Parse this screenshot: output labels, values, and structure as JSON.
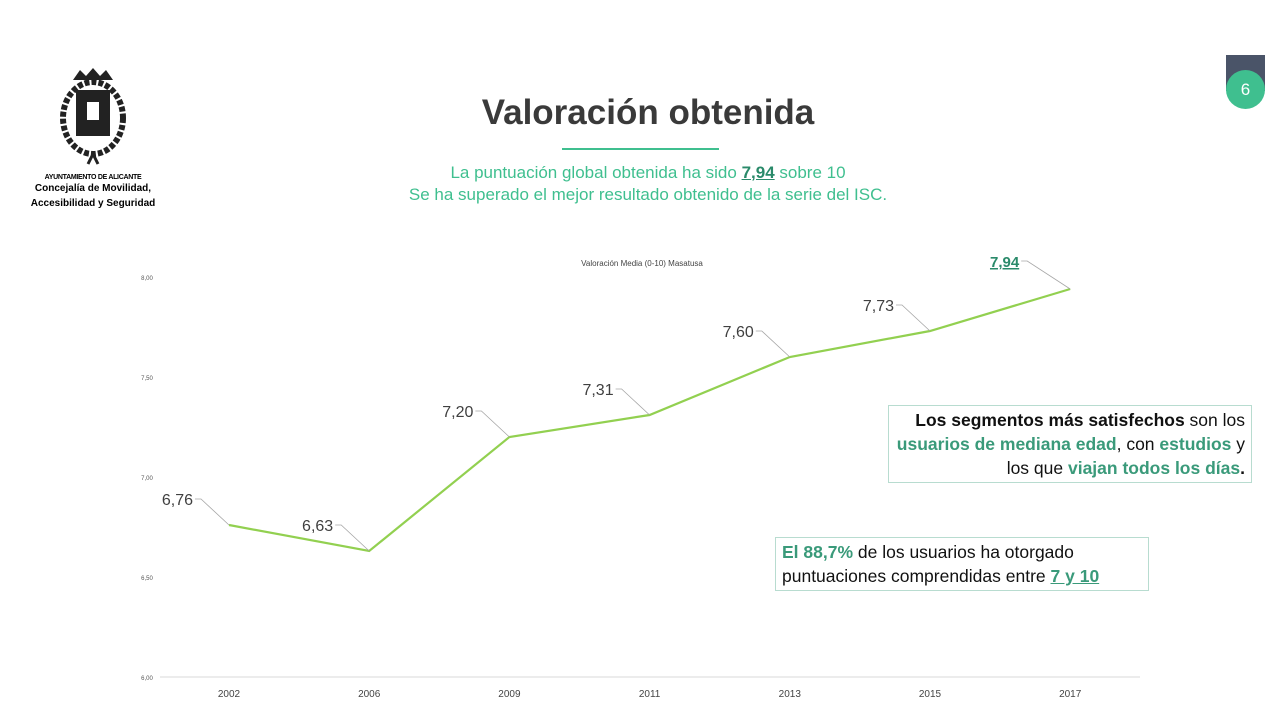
{
  "logo": {
    "line1": "AYUNTAMIENTO DE ALICANTE",
    "line2": "Concejalía de Movilidad,",
    "line3": "Accesibilidad y Seguridad"
  },
  "page_number": "6",
  "title": "Valoración obtenida",
  "subtitle": {
    "pre": "La puntuación global obtenida ha sido ",
    "score": "7,94",
    "post": " sobre 10",
    "line2": "Se ha superado el mejor resultado obtenido de la serie del ISC."
  },
  "chart_data": {
    "type": "line",
    "title": "Valoración Media (0-10) Masatusa",
    "categories": [
      "2002",
      "2006",
      "2009",
      "2011",
      "2013",
      "2015",
      "2017"
    ],
    "values": [
      6.76,
      6.63,
      7.2,
      7.31,
      7.6,
      7.73,
      7.94
    ],
    "data_labels": [
      "6,76",
      "6,63",
      "7,20",
      "7,31",
      "7,60",
      "7,73",
      "7,94"
    ],
    "ylim": [
      6,
      8
    ],
    "yticks": [
      "6,00",
      "6,50",
      "7,00",
      "7,50",
      "8,00"
    ],
    "line_color": "#92d050",
    "grid": false
  },
  "box1": {
    "b1": "Los segmentos más satisfechos",
    "t1": " son los ",
    "g1": "usuarios de mediana edad",
    "t2": ", con ",
    "g2": "estudios",
    "t3": " y los que ",
    "g3": "viajan todos los días",
    "t4": "."
  },
  "box2": {
    "g1": "El 88,7%",
    "t1": " de los usuarios ha otorgado puntuaciones comprendidas entre ",
    "g2": "7 y 10"
  },
  "colors": {
    "accent": "#3fbf8f",
    "text_green": "#3a9a7a",
    "tab": "#4a5468"
  }
}
